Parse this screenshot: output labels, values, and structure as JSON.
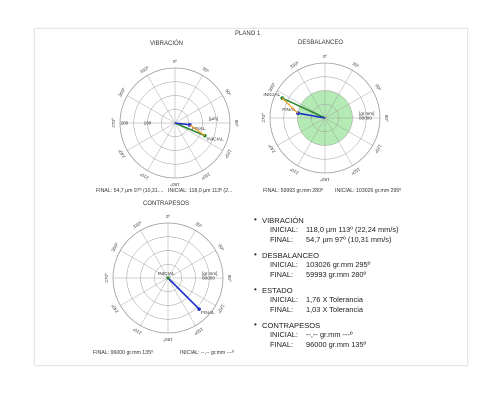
{
  "page": {
    "title": "PLANO 1"
  },
  "charts": [
    {
      "id": "vib",
      "title": "VIBRACIÓN",
      "cx": 175,
      "cy": 123,
      "angle_labels": [
        "0º",
        "30º",
        "60º",
        "90º",
        "120º",
        "150º",
        "180º",
        "210º",
        "240º",
        "270º",
        "300º",
        "330º"
      ],
      "unit": "[µm]",
      "scale_inner": "100",
      "scale_outer": "200",
      "vectors": [
        {
          "label": "INICIAL",
          "magnitude": 118.0,
          "angle_deg": 113,
          "color": "#2e8b2e"
        },
        {
          "label": "FINAL",
          "magnitude": 54.7,
          "angle_deg": 97,
          "color": "#1c2fc8"
        }
      ],
      "max": 200,
      "footer": [
        "FINAL: 54,7 µm 97º (10,31....",
        "INICIAL: 118,0 µm 113º (2..."
      ]
    },
    {
      "id": "des",
      "title": "DESBALANCEO",
      "cx": 325,
      "cy": 118,
      "angle_labels": [
        "0º",
        "30º",
        "60º",
        "90º",
        "120º",
        "150º",
        "180º",
        "210º",
        "240º",
        "270º",
        "300º",
        "330º"
      ],
      "unit": "[gr.mm]",
      "scale_inner": "",
      "scale_outer": "80000",
      "vectors": [
        {
          "label": "INICIAL",
          "magnitude": 103026,
          "angle_deg": 295,
          "color": "#2e8b2e"
        },
        {
          "label": "FINAL",
          "magnitude": 59993,
          "angle_deg": 280,
          "color": "#1c2fc8"
        }
      ],
      "max": 120000,
      "tolerance_fraction": 0.5,
      "footer": [
        "FINAL: 59993 gr.mm 280º",
        "INICIAL: 103026 gr.mm 295º"
      ]
    },
    {
      "id": "con",
      "title": "CONTRAPESOS",
      "cx": 168,
      "cy": 278,
      "angle_labels": [
        "0º",
        "30º",
        "60º",
        "90º",
        "120º",
        "150º",
        "180º",
        "210º",
        "240º",
        "270º",
        "300º",
        "330º"
      ],
      "unit": "[gr.mm]",
      "scale_inner": "",
      "scale_outer": "80000",
      "vectors": [
        {
          "label": "FINAL",
          "magnitude": 96000,
          "angle_deg": 135,
          "color": "#1c2fc8"
        }
      ],
      "center_label": "INICIAL",
      "max": 120000,
      "footer": [
        "FINAL: 96000 gr.mm 135º",
        "INICIAL: --,-- gr.mm ---º"
      ]
    }
  ],
  "info": {
    "vibracion": {
      "title": "VIBRACIÓN",
      "inicial_label": "INICIAL:",
      "inicial": "118,0 µm 113º (22,24 mm/s)",
      "final_label": "FINAL:",
      "final": "54,7 µm 97º (10,31 mm/s)"
    },
    "desbalanceo": {
      "title": "DESBALANCEO",
      "inicial_label": "INICIAL:",
      "inicial": "103026 gr.mm 295º",
      "final_label": "FINAL:",
      "final": "59993 gr.mm 280º"
    },
    "estado": {
      "title": "ESTADO",
      "inicial_label": "INICIAL:",
      "inicial": "1,76 X Tolerancia",
      "final_label": "FINAL:",
      "final": "1,03 X Tolerancia"
    },
    "contrapesos": {
      "title": "CONTRAPESOS",
      "inicial_label": "INICIAL:",
      "inicial": "--,-- gr.mm ---º",
      "final_label": "FINAL:",
      "final": "96000 gr.mm 135º"
    }
  },
  "colors": {
    "grid": "#9a9a9a",
    "tolerance": "#9be39b",
    "inicial": "#2e8b2e",
    "final": "#1c2fc8",
    "orange": "#f0a020"
  }
}
